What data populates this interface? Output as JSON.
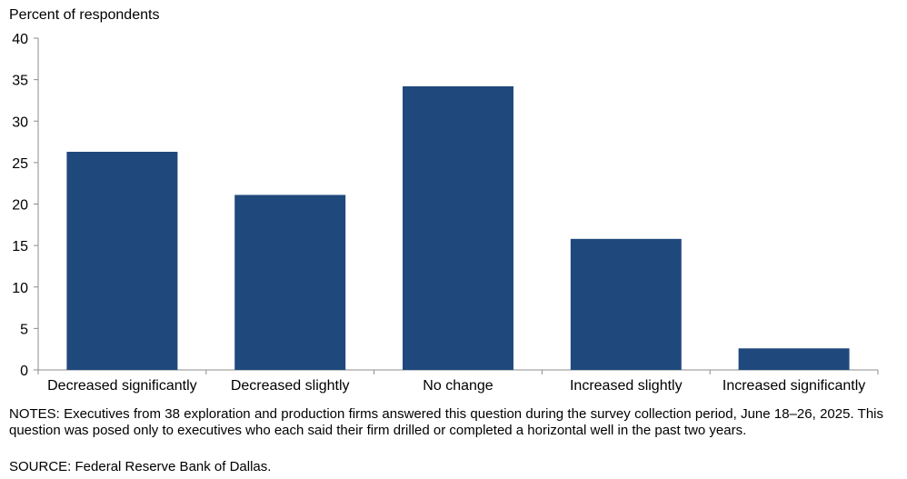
{
  "chart_data": {
    "type": "bar",
    "ylabel": "Percent of respondents",
    "categories": [
      "Decreased significantly",
      "Decreased slightly",
      "No change",
      "Increased slightly",
      "Increased significantly"
    ],
    "values": [
      26.3,
      21.1,
      34.2,
      15.8,
      2.6
    ],
    "ylim": [
      0,
      40
    ],
    "yticks": [
      0,
      5,
      10,
      15,
      20,
      25,
      30,
      35,
      40
    ],
    "grid": false,
    "legend": "none",
    "bar_color": "#1F497D"
  },
  "notes": "NOTES: Executives from 38 exploration and production firms answered this question during the survey collection period, June 18–26, 2025. This question was posed only to executives who each said their firm drilled or completed a horizontal well in the past two years.",
  "source": "SOURCE: Federal Reserve Bank of Dallas."
}
